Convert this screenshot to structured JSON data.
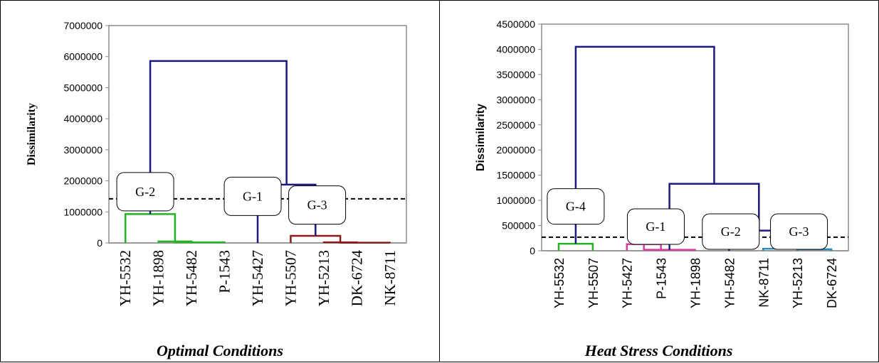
{
  "chart_data": [
    {
      "type": "dendrogram",
      "caption": "Optimal Conditions",
      "ylabel": "Dissimilarity",
      "ylim": [
        0,
        7000000
      ],
      "yticks": [
        0,
        1000000,
        2000000,
        3000000,
        4000000,
        5000000,
        6000000,
        7000000
      ],
      "ytick_labels": [
        "0",
        "1000000",
        "2000000",
        "3000000",
        "4000000",
        "5000000",
        "6000000",
        "7000000"
      ],
      "leaves": [
        "YH-5532",
        "YH-1898",
        "YH-5482",
        "P-1543",
        "YH-5427",
        "YH-5507",
        "YH-5213",
        "DK-6724",
        "NK-8711"
      ],
      "truncation_line": 1420000,
      "merges": [
        {
          "left": [
            1,
            0
          ],
          "right": [
            2,
            0
          ],
          "height": 50000,
          "color": "#22b422"
        },
        {
          "left": [
            3,
            0
          ],
          "right": [
            1.5,
            50000
          ],
          "height": 20000,
          "color": "#22b422"
        },
        {
          "left": [
            0,
            0
          ],
          "right": [
            1.5,
            50000
          ],
          "height": 930000,
          "color": "#22b422"
        },
        {
          "left": [
            6,
            0
          ],
          "right": [
            7,
            0
          ],
          "height": 20000,
          "color": "#8b1a1a"
        },
        {
          "left": [
            8,
            0
          ],
          "right": [
            6.5,
            20000
          ],
          "height": 10000,
          "color": "#8b1a1a"
        },
        {
          "left": [
            5,
            0
          ],
          "right": [
            6.5,
            20000
          ],
          "height": 230000,
          "color": "#8b1a1a"
        },
        {
          "left": [
            4,
            0
          ],
          "right": [
            5.75,
            230000
          ],
          "height": 1880000,
          "color": "#1a1a80"
        },
        {
          "left": [
            0.75,
            930000
          ],
          "right": [
            4.875,
            1880000
          ],
          "height": 5860000,
          "color": "#1a1a80"
        }
      ],
      "groups": [
        {
          "label": "G-2",
          "x": 0.6,
          "y": 1650000
        },
        {
          "label": "G-1",
          "x": 3.85,
          "y": 1500000
        },
        {
          "label": "G-3",
          "x": 5.8,
          "y": 1220000
        }
      ]
    },
    {
      "type": "dendrogram",
      "caption": "Heat Stress Conditions",
      "ylabel": "Dissimilarity",
      "ylim": [
        0,
        4500000
      ],
      "yticks": [
        0,
        500000,
        1000000,
        1500000,
        2000000,
        2500000,
        3000000,
        3500000,
        4000000,
        4500000
      ],
      "ytick_labels": [
        "0",
        "500000",
        "1000000",
        "1500000",
        "2000000",
        "2500000",
        "3000000",
        "3500000",
        "4000000",
        "4500000"
      ],
      "leaves": [
        "YH-5532",
        "YH-5507",
        "YH-5427",
        "P-1543",
        "YH-1898",
        "YH-5482",
        "NK-8711",
        "YH-5213",
        "DK-6724"
      ],
      "truncation_line": 270000,
      "merges": [
        {
          "left": [
            0,
            0
          ],
          "right": [
            1,
            0
          ],
          "height": 140000,
          "color": "#22b422"
        },
        {
          "left": [
            2,
            0
          ],
          "right": [
            3,
            0
          ],
          "height": 130000,
          "color": "#d63ca0"
        },
        {
          "left": [
            2.5,
            130000
          ],
          "right": [
            4,
            0
          ],
          "height": 20000,
          "color": "#d63ca0"
        },
        {
          "left": [
            7,
            0
          ],
          "right": [
            8,
            0
          ],
          "height": 30000,
          "color": "#2a8ab8"
        },
        {
          "left": [
            6,
            0
          ],
          "right": [
            7.5,
            30000
          ],
          "height": 40000,
          "color": "#2a8ab8"
        },
        {
          "left": [
            5,
            0
          ],
          "right": [
            6.75,
            40000
          ],
          "height": 400000,
          "color": "#1a1a80"
        },
        {
          "left": [
            3.25,
            20000
          ],
          "right": [
            5.875,
            400000
          ],
          "height": 1330000,
          "color": "#1a1a80"
        },
        {
          "left": [
            0.5,
            140000
          ],
          "right": [
            4.5625,
            1330000
          ],
          "height": 4050000,
          "color": "#1a1a80"
        }
      ],
      "groups": [
        {
          "label": "G-4",
          "x": 0.5,
          "y": 880000
        },
        {
          "label": "G-1",
          "x": 2.85,
          "y": 480000
        },
        {
          "label": "G-2",
          "x": 5.05,
          "y": 380000
        },
        {
          "label": "G-3",
          "x": 7.05,
          "y": 380000
        }
      ]
    }
  ]
}
